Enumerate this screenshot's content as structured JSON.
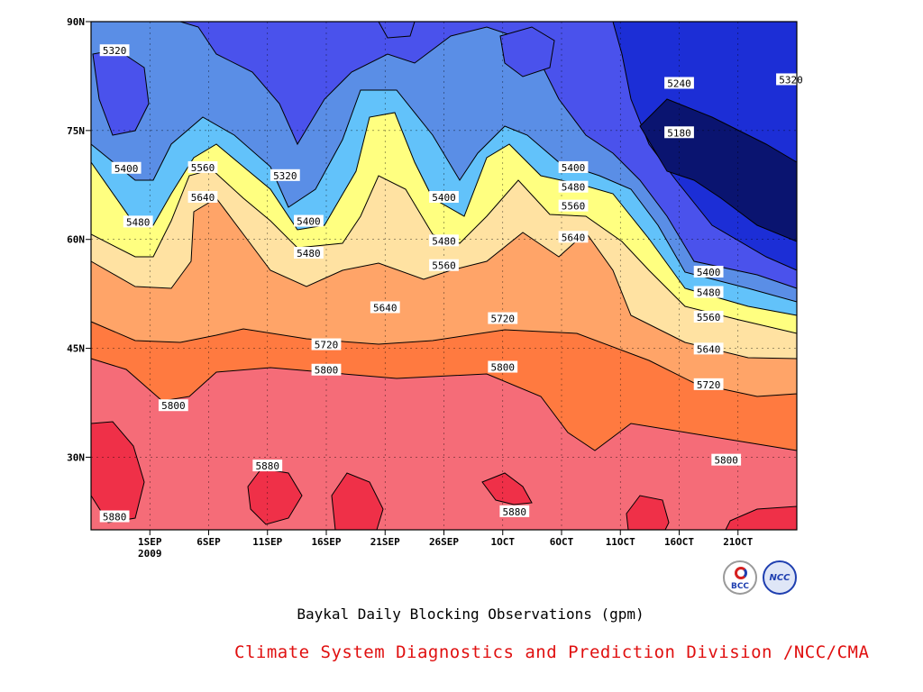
{
  "chart_data": {
    "type": "heatmap",
    "title": "Baykal Daily Blocking Observations (gpm)",
    "credit": "Climate System Diagnostics and Prediction Division /NCC/CMA",
    "x_ticks": [
      "1SEP\n2009",
      "6SEP",
      "11SEP",
      "16SEP",
      "21SEP",
      "26SEP",
      "1OCT",
      "6OCT",
      "11OCT",
      "16OCT",
      "21OCT"
    ],
    "x_tick_days": [
      6,
      11,
      16,
      21,
      26,
      31,
      36,
      41,
      46,
      51,
      56
    ],
    "xlim": [
      1,
      61
    ],
    "y_ticks": [
      "30N",
      "45N",
      "60N",
      "75N",
      "90N"
    ],
    "y_tick_values": [
      30,
      45,
      60,
      75,
      90
    ],
    "ylim": [
      20,
      90
    ],
    "contour_levels": [
      5180,
      5240,
      5320,
      5400,
      5480,
      5560,
      5640,
      5720,
      5800,
      5880
    ],
    "level_colors": [
      "#0a1470",
      "#1c2ed6",
      "#4a52ec",
      "#5a8ee6",
      "#62c2fa",
      "#ffff80",
      "#ffe2a2",
      "#ffa468",
      "#ff7a40",
      "#f56c78",
      "#ef3048"
    ],
    "contour_labels": [
      {
        "text": "5320",
        "x": 3.0,
        "lat": 86.0
      },
      {
        "text": "5240",
        "x": 51.0,
        "lat": 81.5
      },
      {
        "text": "5320",
        "x": 60.5,
        "lat": 82.0
      },
      {
        "text": "5180",
        "x": 51.0,
        "lat": 74.7
      },
      {
        "text": "5400",
        "x": 4.0,
        "lat": 69.8
      },
      {
        "text": "5560",
        "x": 10.5,
        "lat": 69.9
      },
      {
        "text": "5320",
        "x": 17.5,
        "lat": 68.8
      },
      {
        "text": "5400",
        "x": 31.0,
        "lat": 65.8
      },
      {
        "text": "5400",
        "x": 42.0,
        "lat": 69.9
      },
      {
        "text": "5480",
        "x": 42.0,
        "lat": 67.2
      },
      {
        "text": "5560",
        "x": 42.0,
        "lat": 64.6
      },
      {
        "text": "5640",
        "x": 10.5,
        "lat": 65.8
      },
      {
        "text": "5480",
        "x": 5.0,
        "lat": 62.4
      },
      {
        "text": "5400",
        "x": 19.5,
        "lat": 62.5
      },
      {
        "text": "5480",
        "x": 31.0,
        "lat": 59.8
      },
      {
        "text": "5640",
        "x": 42.0,
        "lat": 60.3
      },
      {
        "text": "5480",
        "x": 19.5,
        "lat": 58.1
      },
      {
        "text": "5560",
        "x": 31.0,
        "lat": 56.4
      },
      {
        "text": "5400",
        "x": 53.5,
        "lat": 55.5
      },
      {
        "text": "5480",
        "x": 53.5,
        "lat": 52.7
      },
      {
        "text": "5640",
        "x": 26.0,
        "lat": 50.6
      },
      {
        "text": "5720",
        "x": 36.0,
        "lat": 49.1
      },
      {
        "text": "5560",
        "x": 53.5,
        "lat": 49.3
      },
      {
        "text": "5720",
        "x": 21.0,
        "lat": 45.5
      },
      {
        "text": "5640",
        "x": 53.5,
        "lat": 44.9
      },
      {
        "text": "5800",
        "x": 21.0,
        "lat": 42.0
      },
      {
        "text": "5800",
        "x": 36.0,
        "lat": 42.4
      },
      {
        "text": "5720",
        "x": 53.5,
        "lat": 40.0
      },
      {
        "text": "5800",
        "x": 8.0,
        "lat": 37.1
      },
      {
        "text": "5800",
        "x": 55.0,
        "lat": 29.6
      },
      {
        "text": "5880",
        "x": 16.0,
        "lat": 28.8
      },
      {
        "text": "5880",
        "x": 37.0,
        "lat": 22.5
      },
      {
        "text": "5880",
        "x": 3.0,
        "lat": 21.8
      }
    ]
  }
}
